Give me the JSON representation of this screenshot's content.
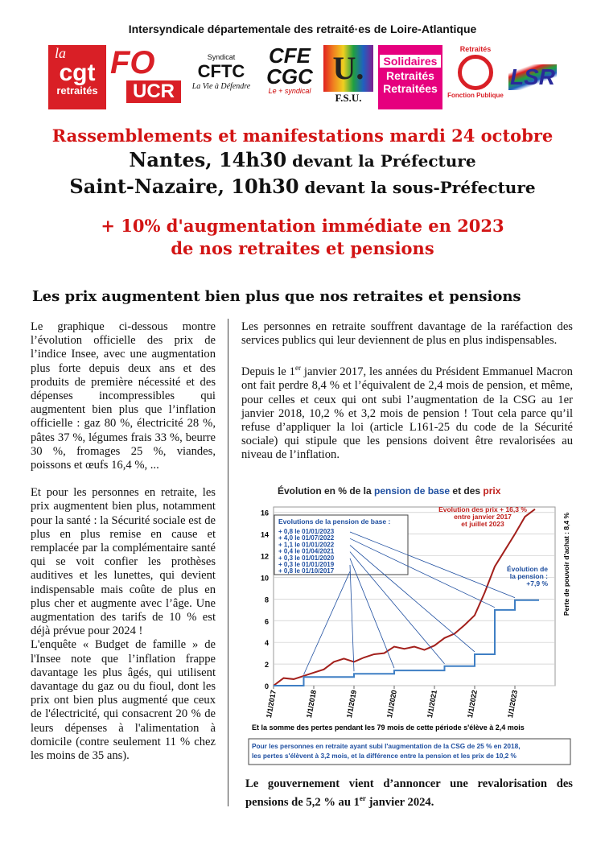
{
  "header": {
    "title": "Intersyndicale départementale des retraité·es de Loire-Atlantique"
  },
  "logos": {
    "cgt": [
      "la",
      "cgt",
      "retraités"
    ],
    "fo": [
      "FO",
      "UCR"
    ],
    "cftc": [
      "Syndicat",
      "CFTC",
      "La Vie à Défendre"
    ],
    "cfe": [
      "CFE",
      "CGC",
      "Le + syndical"
    ],
    "fsu": [
      "U.",
      "F.S.U."
    ],
    "solidaires": [
      "Solidaires",
      "Retraités",
      "Retraitées"
    ],
    "fp": [
      "Retraités",
      "Fonction Publique"
    ],
    "lsr": [
      "LSR"
    ]
  },
  "headline": {
    "line1": "Rassemblements et manifestations mardi 24 octobre",
    "line2": [
      "Nantes, 14h30",
      " devant la Préfecture"
    ],
    "line3": [
      "Saint-Nazaire,  10h30",
      " devant la sous-Préfecture"
    ],
    "demand1": "+ 10% d'augmentation immédiate en 2023",
    "demand2": "de nos retraites et pensions"
  },
  "section_heading": "Les prix augmentent bien plus que nos retraites et pensions",
  "left_column": [
    "Le graphique ci-dessous montre l’évolution officielle des prix de l’indice Insee, avec une augmentation plus forte depuis deux ans et des produits de première nécessité et des dépenses incompressibles qui augmentent bien plus que l’inflation officielle : gaz 80 %, électricité 28 %, pâtes 37 %, légumes frais 33 %, beurre 30 %, fromages 25 %, viandes, poissons et œufs 16,4 %, ...",
    "Et pour les personnes en retraite, les prix augmentent bien plus, notamment pour la santé : la Sécurité sociale est de plus en plus remise en cause et remplacée par la complémentaire santé qui se voit confier les prothèses auditives et les lunettes, qui devient indispensable mais coûte de plus en plus cher et augmente avec l’âge. Une augmentation des tarifs de 10 % est déjà prévue pour 2024 !",
    "L'enquête « Budget de famille » de l'Insee note que l’inflation frappe davantage les plus âgés, qui utilisent davantage du gaz ou du fioul, dont les prix ont bien plus augmenté que ceux de l'électricité, qui consacrent 20 % de leurs dépenses à l'alimentation à domicile (contre seulement 11 % chez les moins de 35 ans)."
  ],
  "right_column": {
    "p1": "Les personnes en retraite souffrent davantage de la raréfaction des services publics qui leur deviennent de plus en plus indispensables.",
    "p2": [
      "Depuis le 1",
      "er",
      " janvier 2017, les années du Président Emmanuel Macron ont fait perdre 8,4 % et l’équivalent de 2,4 mois de pension, et même, pour celles et ceux qui ont subi l’augmentation de la CSG au 1er janvier 2018, 10,2 % et 3,2 mois de pension ! Tout cela parce qu’il refuse d’appliquer la loi (article L161-25 du code de la Sécurité sociale) qui stipule que les pensions doivent être revalorisées au niveau de l’inflation."
    ],
    "closing": [
      "Le gouvernement vient d’annoncer une revalorisation des pensions de 5,2 % au 1",
      "er",
      " janvier 2024."
    ]
  },
  "chart": {
    "type": "line",
    "title": [
      "Évolution en % de la ",
      "pension de base",
      " et des ",
      "prix"
    ],
    "xlim": [
      2017,
      2024
    ],
    "ylim": [
      0,
      16.5
    ],
    "xticks": [
      {
        "value": 2017,
        "label": "1/1/2017"
      },
      {
        "value": 2018,
        "label": "1/1/2018"
      },
      {
        "value": 2019,
        "label": "1/1/2019"
      },
      {
        "value": 2020,
        "label": "1/1/2020"
      },
      {
        "value": 2021,
        "label": "1/1/2021"
      },
      {
        "value": 2022,
        "label": "1/1/2022"
      },
      {
        "value": 2023,
        "label": "1/1/2023"
      }
    ],
    "yticks": [
      0,
      2,
      4,
      6,
      8,
      10,
      12,
      14,
      16
    ],
    "grid": true,
    "series": [
      {
        "name": "prix",
        "color": "#a3201c",
        "x": [
          2017,
          2017.25,
          2017.5,
          2017.75,
          2018,
          2018.25,
          2018.5,
          2018.75,
          2019,
          2019.25,
          2019.5,
          2019.75,
          2020,
          2020.25,
          2020.5,
          2020.75,
          2021,
          2021.25,
          2021.5,
          2021.75,
          2022,
          2022.25,
          2022.5,
          2022.75,
          2023,
          2023.25,
          2023.5
        ],
        "values": [
          0,
          0.7,
          0.6,
          0.9,
          1.2,
          1.5,
          2.2,
          2.5,
          2.2,
          2.6,
          2.9,
          3.0,
          3.6,
          3.4,
          3.6,
          3.3,
          3.7,
          4.4,
          4.8,
          5.6,
          6.5,
          8.6,
          11.0,
          12.5,
          14.0,
          15.6,
          16.3
        ]
      },
      {
        "name": "pension de base",
        "color": "#3f7fc4",
        "x": [
          2017,
          2017.75,
          2017.75,
          2019,
          2019,
          2020,
          2020,
          2021.25,
          2021.25,
          2022,
          2022,
          2022.5,
          2022.5,
          2023,
          2023,
          2023.6
        ],
        "values": [
          0,
          0,
          0.8,
          0.8,
          1.1,
          1.1,
          1.4,
          1.4,
          1.8,
          1.8,
          2.9,
          2.9,
          7.0,
          7.0,
          7.9,
          7.9
        ]
      }
    ],
    "legend_title": "Evolutions de la pension de base :",
    "legend_items": [
      "+ 0,8 le 01/01/2023",
      "+ 4,0 le 01/07/2022",
      "+ 1,1 le 01/01/2022",
      "+ 0,4 le 01/04/2021",
      "+ 0,3 le 01/01/2020",
      "+ 0,3 le 01/01/2019",
      "+ 0,8 le 01/10/2017"
    ],
    "price_note": [
      "Evolution des prix + 16,3 %",
      "entre janvier 2017",
      "et juillet 2023"
    ],
    "pension_note": [
      "Évolution de",
      "la pension :",
      "+7,9 %"
    ],
    "side_note": "Perte de pouvoir d'achat : 8,4 %",
    "footer": "Et la somme des pertes pendant les 79 mois de cette période s'élève à 2,4 mois",
    "box_note": [
      "Pour les personnes en retraite ayant subi l'augmentation de la CSG de 25 % en 2018,",
      "les pertes s'élèvent à 3,2 mois, et la différence entre la pension et les prix de 10,2 %"
    ]
  }
}
